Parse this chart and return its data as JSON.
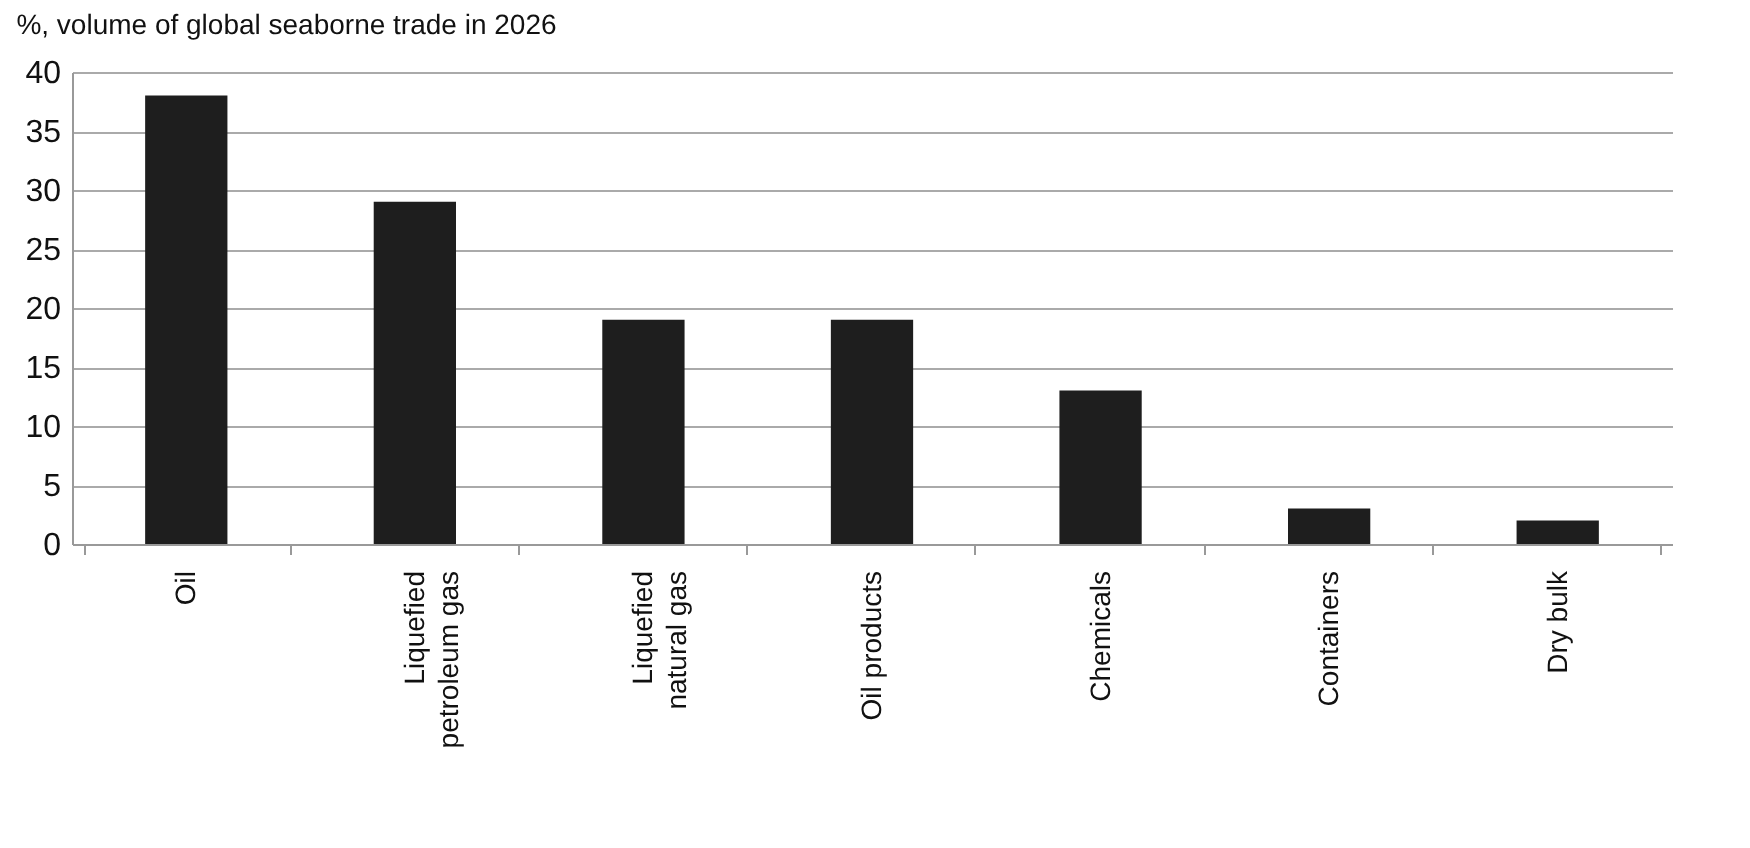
{
  "chart_data": {
    "type": "bar",
    "title": "%, volume of global seaborne trade in 2026",
    "categories": [
      "Oil",
      "Liquefied petroleum gas",
      "Liquefied natural gas",
      "Oil products",
      "Chemicals",
      "Containers",
      "Dry bulk"
    ],
    "values": [
      38,
      29,
      19,
      19,
      13,
      3,
      2
    ],
    "color": "#1e1e1e",
    "ylim": [
      0,
      40
    ],
    "yticks": [
      0,
      5,
      10,
      15,
      20,
      25,
      30,
      35,
      40
    ],
    "grid": "y"
  }
}
